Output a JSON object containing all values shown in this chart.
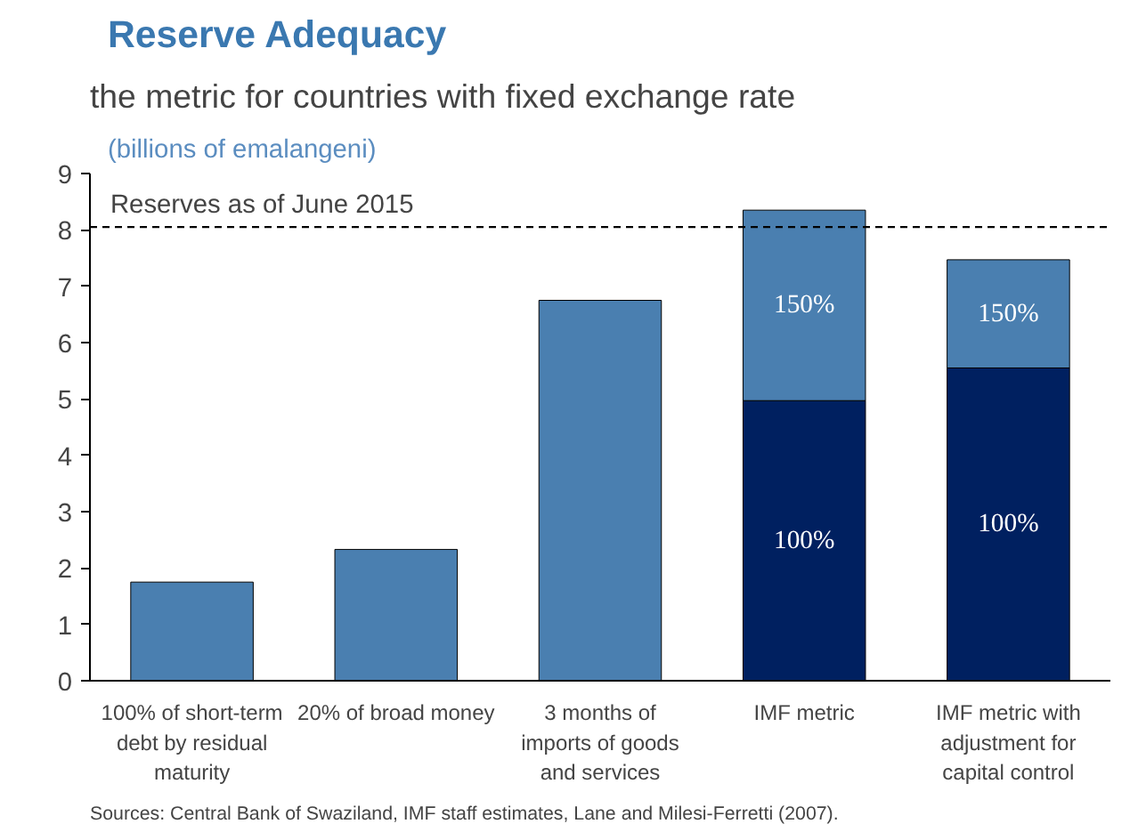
{
  "chart_data": {
    "type": "bar",
    "title": "Reserve Adequacy",
    "subtitle": "(billions of emalangeni)",
    "categories": [
      "100% of short-term debt by residual maturity",
      "20% of broad money",
      "3 months of imports of goods and services",
      "IMF metric",
      "IMF metric with adjustment for capital control"
    ],
    "stacked": true,
    "series": [
      {
        "color": "#4a7fb0",
        "values": [
          1.75,
          2.33,
          6.75,
          null,
          null
        ]
      },
      {
        "name": "100%",
        "color": "#002060",
        "values": [
          null,
          null,
          null,
          4.97,
          5.55
        ]
      },
      {
        "name": "150%",
        "color": "#4a7fb0",
        "values": [
          null,
          null,
          null,
          3.38,
          1.92
        ]
      }
    ],
    "ylim": [
      0,
      9
    ],
    "yticks": [
      0,
      1,
      2,
      3,
      4,
      5,
      6,
      7,
      8,
      9
    ],
    "grid": false,
    "ref_lines": [
      {
        "axis": "y",
        "value": 8.05,
        "label": "Reserves as of June 2015",
        "color": "#000000",
        "line_style": "dashed"
      }
    ],
    "annotations": [
      "the metric for countries with fixed exchange rate",
      "Sources: Central Bank of Swaziland, IMF staff estimates, Lane and Milesi-Ferretti (2007)."
    ]
  }
}
